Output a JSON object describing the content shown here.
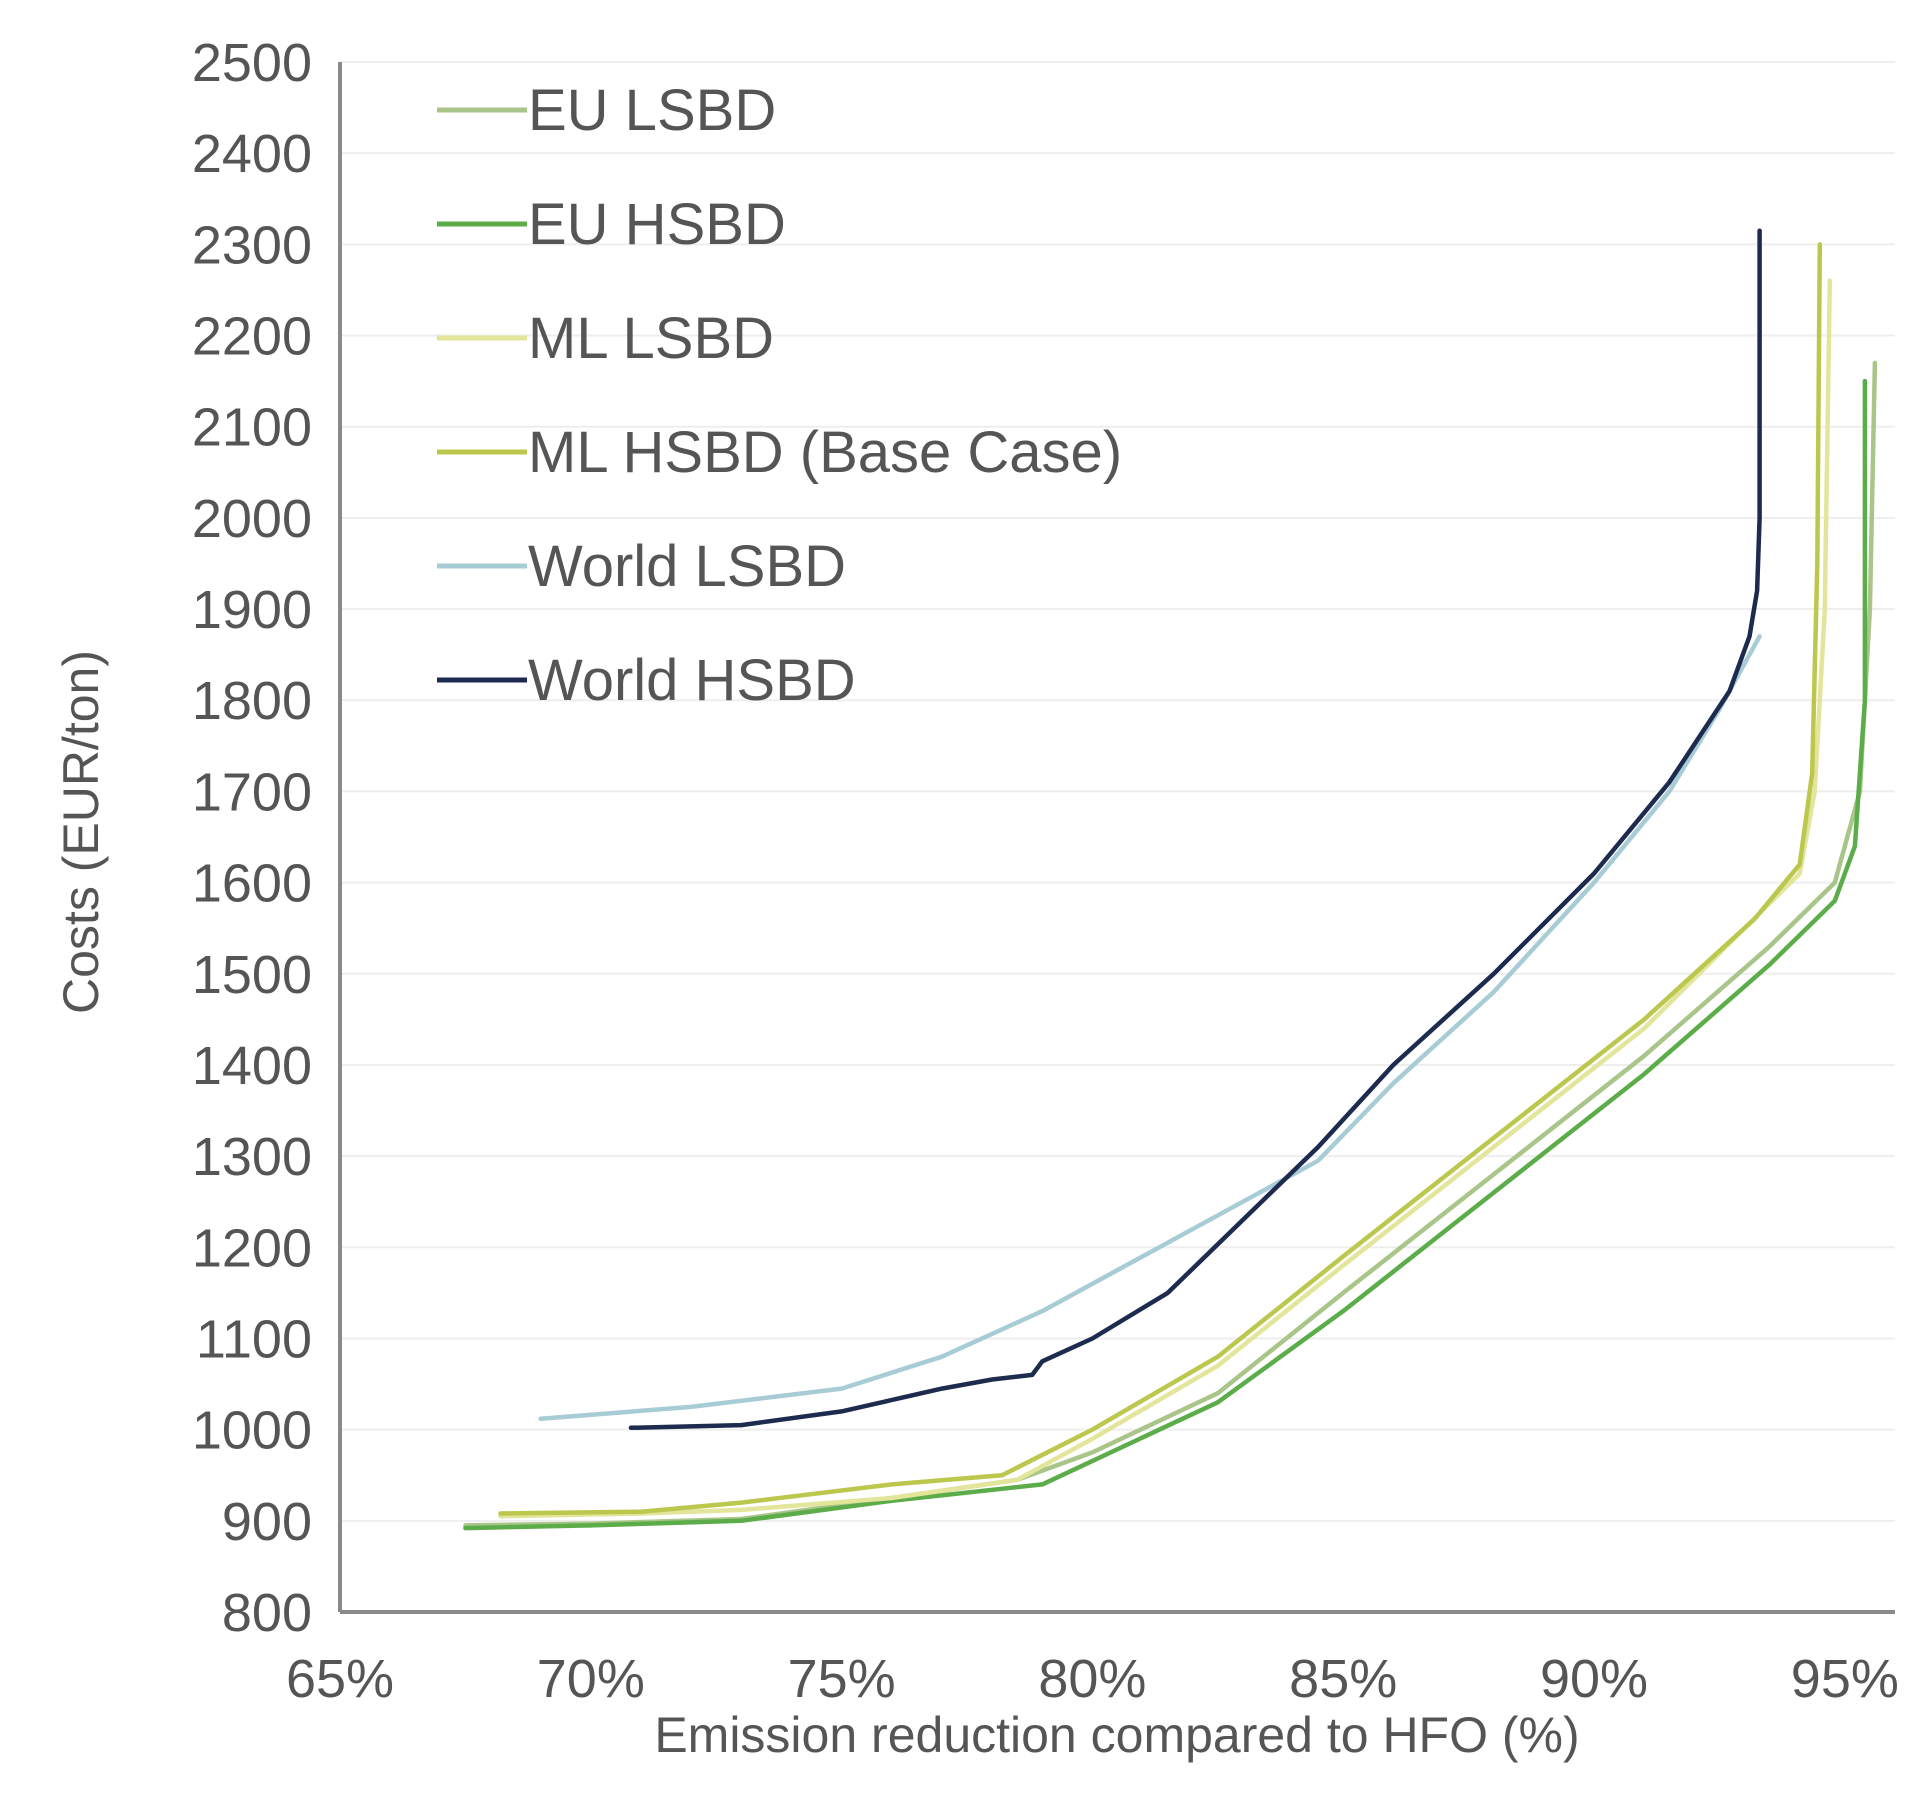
{
  "chart_data": {
    "type": "line",
    "title": "",
    "xlabel": "Emission reduction compared to HFO (%)",
    "ylabel": "Costs (EUR/ton)",
    "xlim": [
      65,
      96
    ],
    "ylim": [
      800,
      2500
    ],
    "xticks": [
      65,
      70,
      75,
      80,
      85,
      90,
      95
    ],
    "xtick_labels": [
      "65%",
      "70%",
      "75%",
      "80%",
      "85%",
      "90%",
      "95%"
    ],
    "yticks": [
      800,
      900,
      1000,
      1100,
      1200,
      1300,
      1400,
      1500,
      1600,
      1700,
      1800,
      1900,
      2000,
      2100,
      2200,
      2300,
      2400,
      2500
    ],
    "ytick_labels": [
      "800",
      "900",
      "1000",
      "1100",
      "1200",
      "1300",
      "1400",
      "1500",
      "1600",
      "1700",
      "1800",
      "1900",
      "2000",
      "2100",
      "2200",
      "2300",
      "2400",
      "2500"
    ],
    "grid": "horizontal",
    "legend_position": "top-left",
    "series": [
      {
        "name": "EU LSBD",
        "color": "#a9c58a",
        "x": [
          67.5,
          70,
          73,
          76,
          78.5,
          80,
          82.5,
          85,
          88,
          91,
          93.5,
          94.8,
          95.3,
          95.5,
          95.6
        ],
        "y": [
          895,
          897,
          902,
          925,
          945,
          975,
          1040,
          1150,
          1280,
          1410,
          1530,
          1600,
          1700,
          1900,
          2170
        ]
      },
      {
        "name": "EU HSBD",
        "color": "#5cad4a",
        "x": [
          67.5,
          70,
          73,
          76,
          79,
          82.5,
          85,
          88,
          91,
          93.5,
          94.8,
          95.2,
          95.4,
          95.4
        ],
        "y": [
          892,
          895,
          900,
          922,
          940,
          1030,
          1130,
          1260,
          1390,
          1510,
          1580,
          1640,
          1800,
          2150
        ]
      },
      {
        "name": "ML LSBD",
        "color": "#e2e59a",
        "x": [
          68.2,
          71,
          73,
          76,
          78.5,
          80,
          82.5,
          85,
          88,
          91,
          93,
          94.1,
          94.4,
          94.6,
          94.7
        ],
        "y": [
          905,
          908,
          912,
          925,
          945,
          990,
          1070,
          1180,
          1310,
          1440,
          1550,
          1610,
          1700,
          1900,
          2260
        ]
      },
      {
        "name": "ML HSBD (Base Case)",
        "color": "#bcc74e",
        "x": [
          68.2,
          71,
          73,
          76,
          78.2,
          80,
          82.5,
          85,
          88,
          91,
          93.2,
          94.1,
          94.35,
          94.45,
          94.5
        ],
        "y": [
          908,
          910,
          920,
          940,
          950,
          1000,
          1080,
          1190,
          1320,
          1450,
          1560,
          1620,
          1720,
          1950,
          2300
        ]
      },
      {
        "name": "World LSBD",
        "color": "#a8ccd6",
        "x": [
          69,
          72,
          75,
          77,
          79,
          81,
          83,
          84.5,
          86,
          88,
          90,
          91.5,
          92.5,
          93.1,
          93.3
        ],
        "y": [
          1012,
          1025,
          1045,
          1080,
          1130,
          1190,
          1250,
          1295,
          1380,
          1480,
          1600,
          1700,
          1790,
          1850,
          1870
        ]
      },
      {
        "name": "World HSBD",
        "color": "#1d2b4f",
        "x": [
          70.8,
          73,
          75,
          77,
          78,
          78.8,
          79,
          80,
          81.5,
          83,
          84.5,
          86,
          88,
          90,
          91.5,
          92.7,
          93.1,
          93.25,
          93.3,
          93.3
        ],
        "y": [
          1002,
          1005,
          1020,
          1045,
          1055,
          1060,
          1075,
          1100,
          1150,
          1230,
          1310,
          1400,
          1500,
          1610,
          1710,
          1810,
          1870,
          1920,
          2000,
          2315
        ]
      }
    ]
  }
}
